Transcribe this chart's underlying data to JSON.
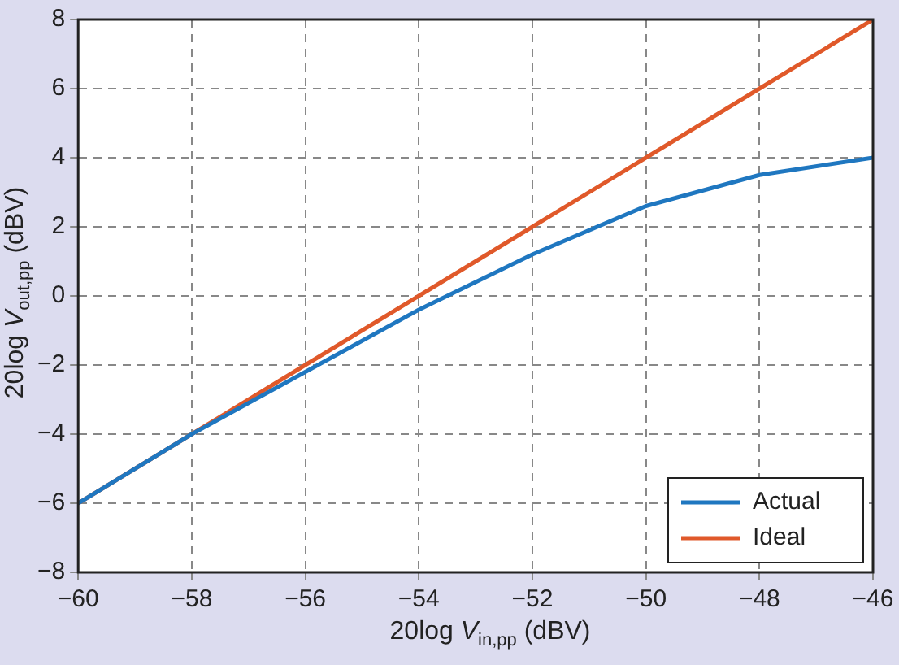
{
  "chart_data": {
    "type": "line",
    "xlabel": "20log V$_{in,pp}$ (dBV)",
    "ylabel": "20log V$_{out,pp}$ (dBV)",
    "x": [
      -60,
      -58,
      -56,
      -54,
      -52,
      -50,
      -48,
      -46
    ],
    "series": [
      {
        "name": "Actual",
        "color": "#1f77c0",
        "values": [
          -6,
          -4,
          -2.2,
          -0.4,
          1.2,
          2.6,
          3.5,
          4
        ]
      },
      {
        "name": "Ideal",
        "color": "#e0592a",
        "values": [
          -6,
          -4,
          -2,
          0,
          2,
          4,
          6,
          8
        ]
      }
    ],
    "xlim": [
      -60,
      -46
    ],
    "xticks": [
      -60,
      -58,
      -56,
      -54,
      -52,
      -50,
      -48,
      -46
    ],
    "ylim": [
      -8,
      8
    ],
    "yticks": [
      -8,
      -6,
      -4,
      -2,
      0,
      2,
      4,
      6,
      8
    ],
    "grid": true,
    "legend": "bottom right",
    "marker": "none",
    "line_style": "solid"
  }
}
